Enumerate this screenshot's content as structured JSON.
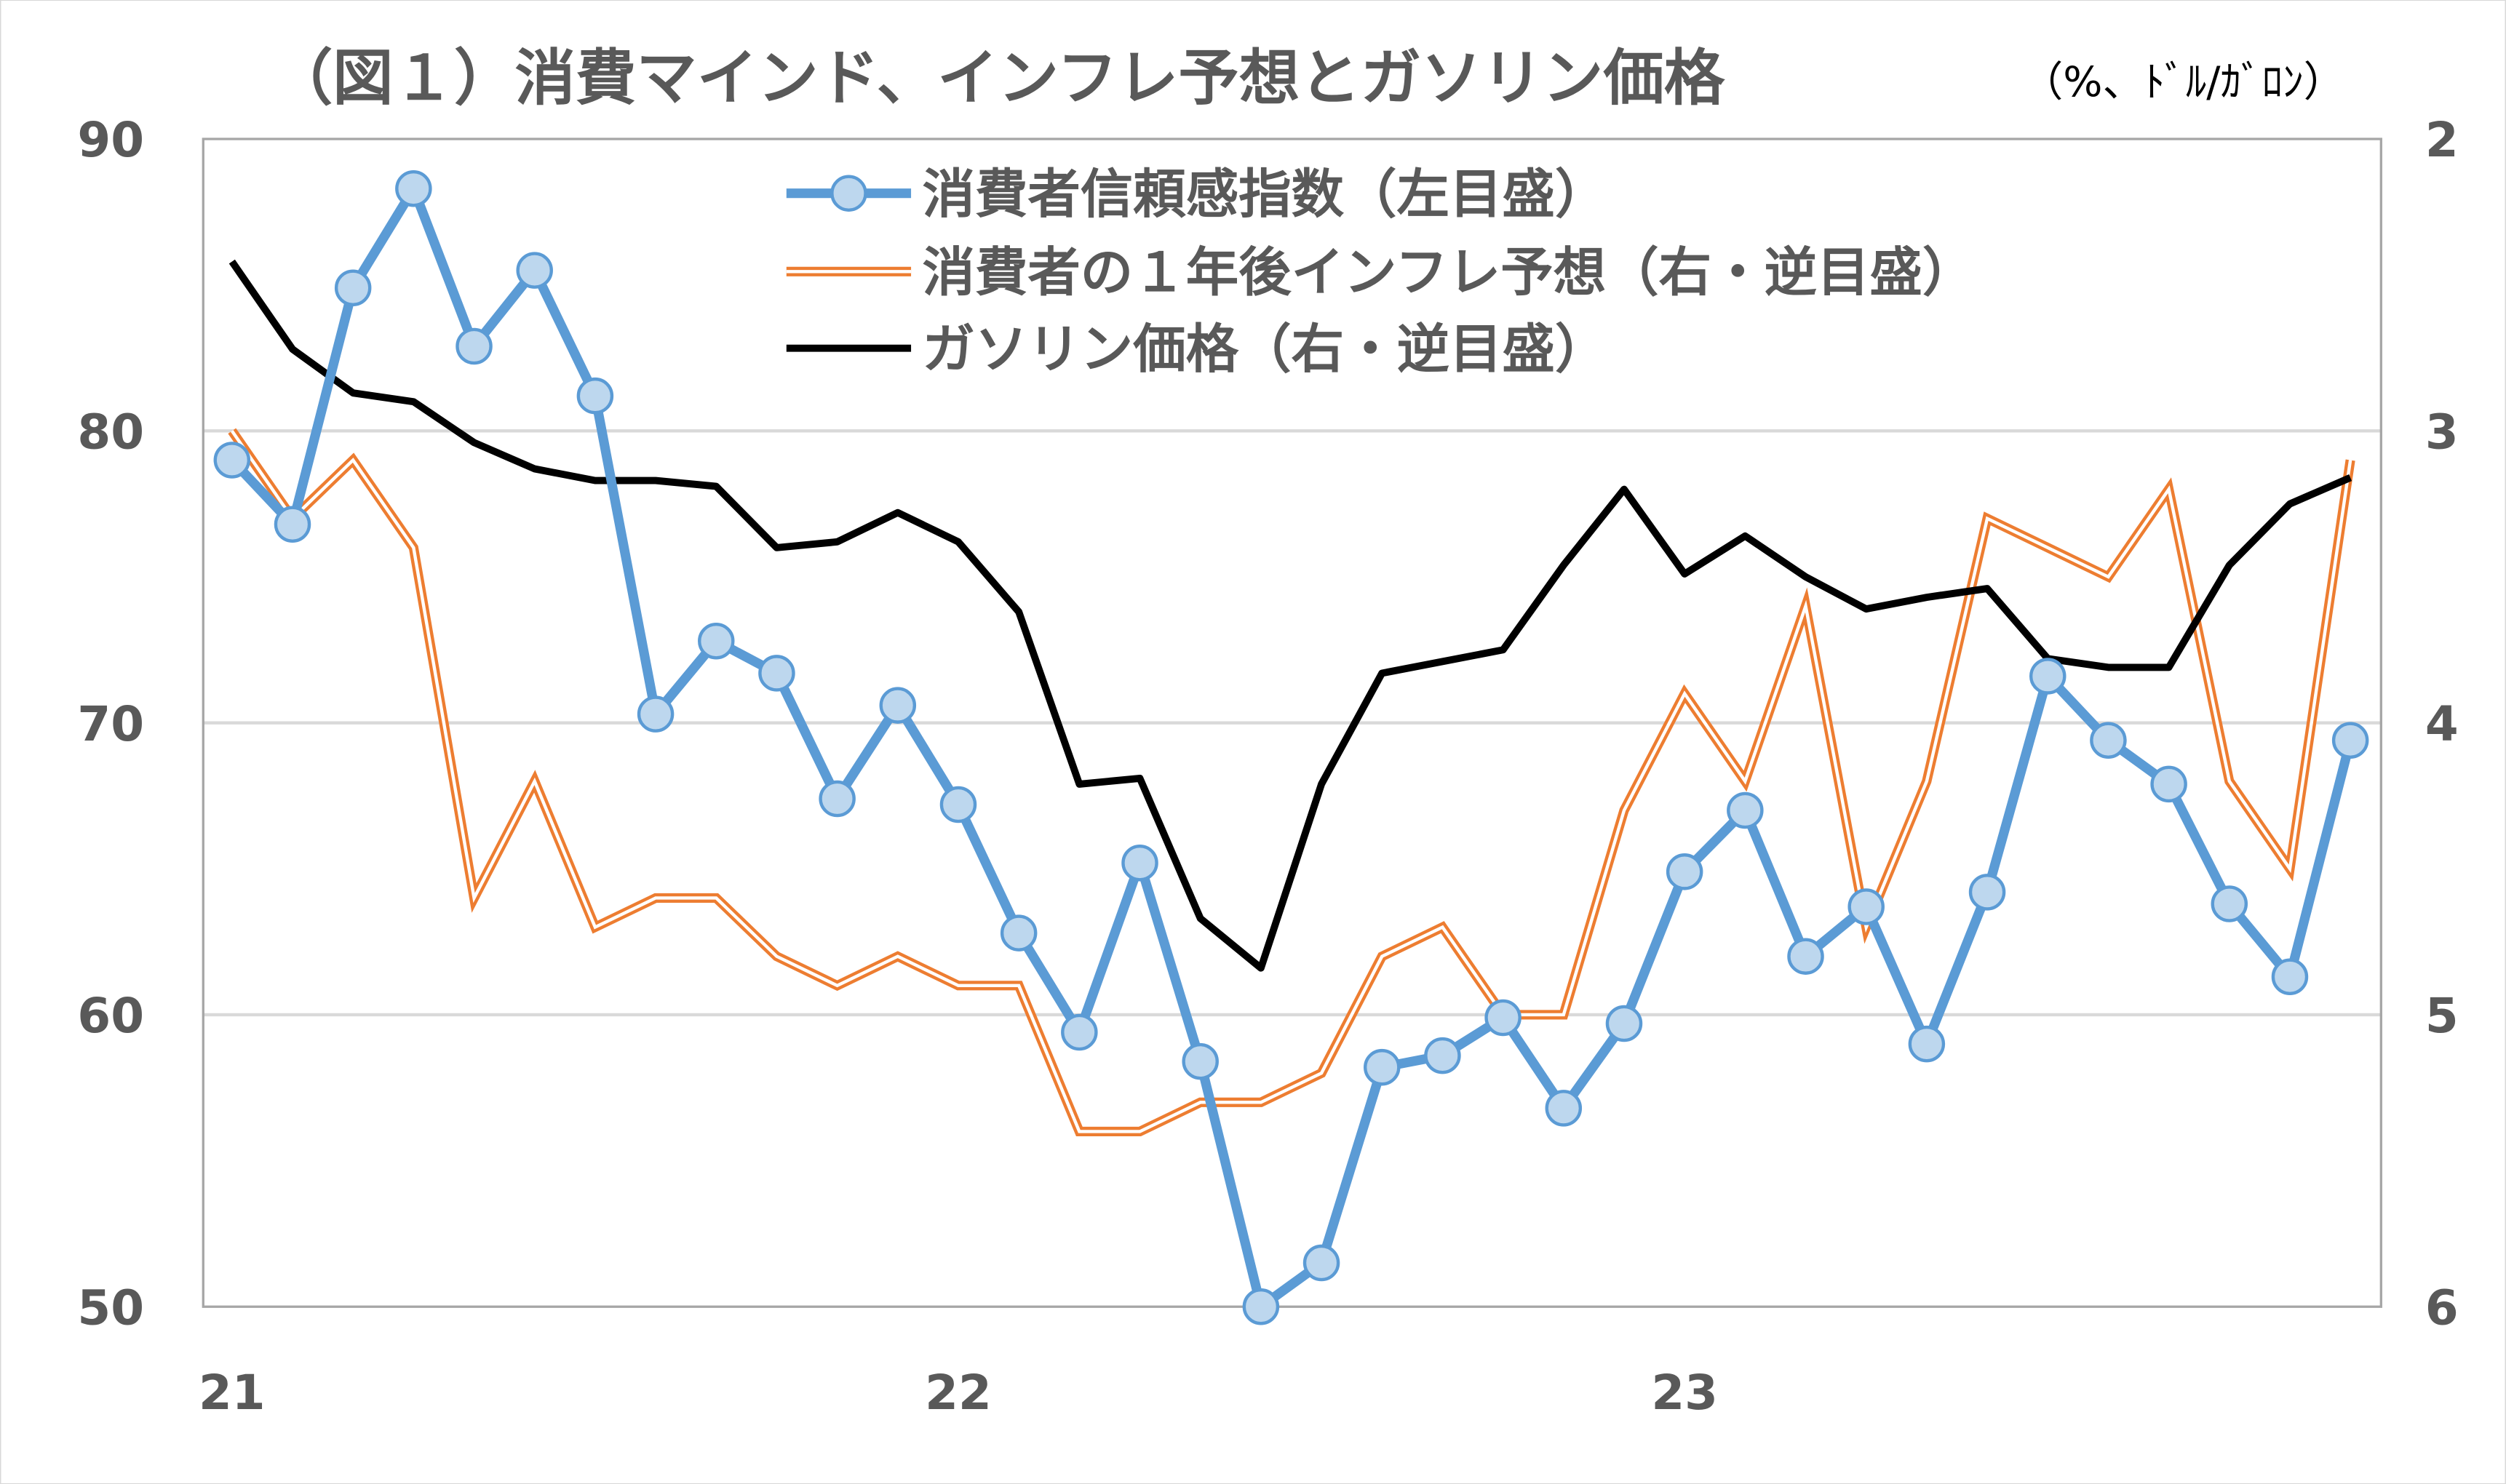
{
  "chart_data": {
    "type": "line",
    "title": "（図１）消費マインド、インフレ予想とガソリン価格",
    "unit_label": "（%、ﾄﾞﾙ/ｶﾞﾛﾝ）",
    "x_tick_labels": [
      "21",
      "22",
      "23"
    ],
    "x_start": "2021-01",
    "x_frequency": "monthly",
    "left_axis": {
      "ylim": [
        50,
        90
      ],
      "ticks": [
        "50",
        "60",
        "70",
        "80",
        "90"
      ]
    },
    "right_axis": {
      "ylim": [
        2,
        6
      ],
      "inverted": true,
      "ticks": [
        "2",
        "3",
        "4",
        "5",
        "6"
      ]
    },
    "grid": true,
    "legend_position": "top-center",
    "series": [
      {
        "name": "消費者信頼感指数（左目盛）",
        "axis": "left",
        "color": "#5B9BD5",
        "marker_fill": "#BDD7EE",
        "values": [
          79.0,
          76.8,
          84.9,
          88.3,
          82.9,
          85.5,
          81.2,
          70.3,
          72.8,
          71.7,
          67.4,
          70.6,
          67.2,
          62.8,
          59.4,
          65.2,
          58.4,
          50.0,
          51.5,
          58.2,
          58.6,
          59.9,
          56.8,
          59.7,
          64.9,
          67.0,
          62.0,
          63.7,
          59.0,
          64.2,
          71.6,
          69.4,
          67.9,
          63.8,
          61.3,
          69.4
        ]
      },
      {
        "name": "消費者の１年後インフレ予想（右・逆目盛）",
        "axis": "right",
        "color": "#ED7D31",
        "values": [
          3.0,
          3.3,
          3.1,
          3.4,
          4.6,
          4.2,
          4.7,
          4.6,
          4.6,
          4.8,
          4.9,
          4.8,
          4.9,
          4.9,
          5.4,
          5.4,
          5.3,
          5.3,
          5.2,
          4.8,
          4.7,
          5.0,
          5.0,
          4.3,
          3.9,
          4.2,
          3.6,
          4.7,
          4.2,
          3.3,
          3.4,
          3.5,
          3.2,
          4.2,
          4.5,
          3.1
        ]
      },
      {
        "name": "ガソリン価格（右・逆目盛）",
        "axis": "right",
        "color": "#000000",
        "values": [
          2.42,
          2.72,
          2.87,
          2.9,
          3.04,
          3.13,
          3.17,
          3.17,
          3.19,
          3.4,
          3.38,
          3.28,
          3.38,
          3.62,
          4.21,
          4.19,
          4.67,
          4.84,
          4.21,
          3.83,
          3.79,
          3.75,
          3.46,
          3.2,
          3.49,
          3.36,
          3.5,
          3.61,
          3.57,
          3.54,
          3.78,
          3.81,
          3.81,
          3.46,
          3.25,
          3.16
        ]
      }
    ]
  }
}
